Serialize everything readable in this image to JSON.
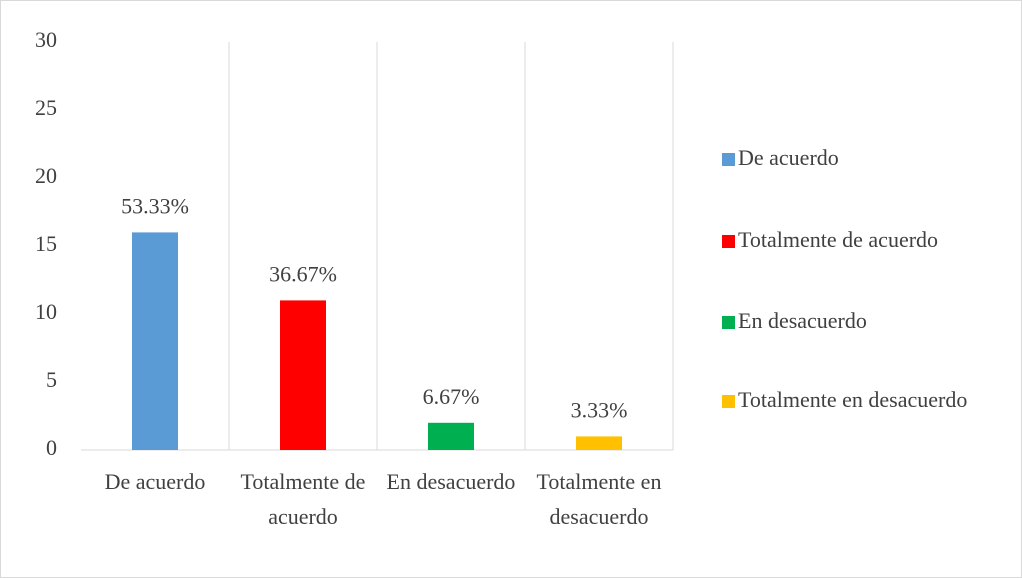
{
  "chart_data": {
    "type": "bar",
    "categories": [
      "De acuerdo",
      "Totalmente de acuerdo",
      "En desacuerdo",
      "Totalmente en desacuerdo"
    ],
    "values": [
      16,
      11,
      2,
      1
    ],
    "value_labels": [
      "53.33%",
      "36.67%",
      "6.67%",
      "3.33%"
    ],
    "colors": [
      "#5b9bd5",
      "#ff0000",
      "#00b050",
      "#ffc000"
    ],
    "ylim": [
      0,
      30
    ],
    "yticks": [
      0,
      5,
      10,
      15,
      20,
      25,
      30
    ],
    "legend": "right"
  }
}
